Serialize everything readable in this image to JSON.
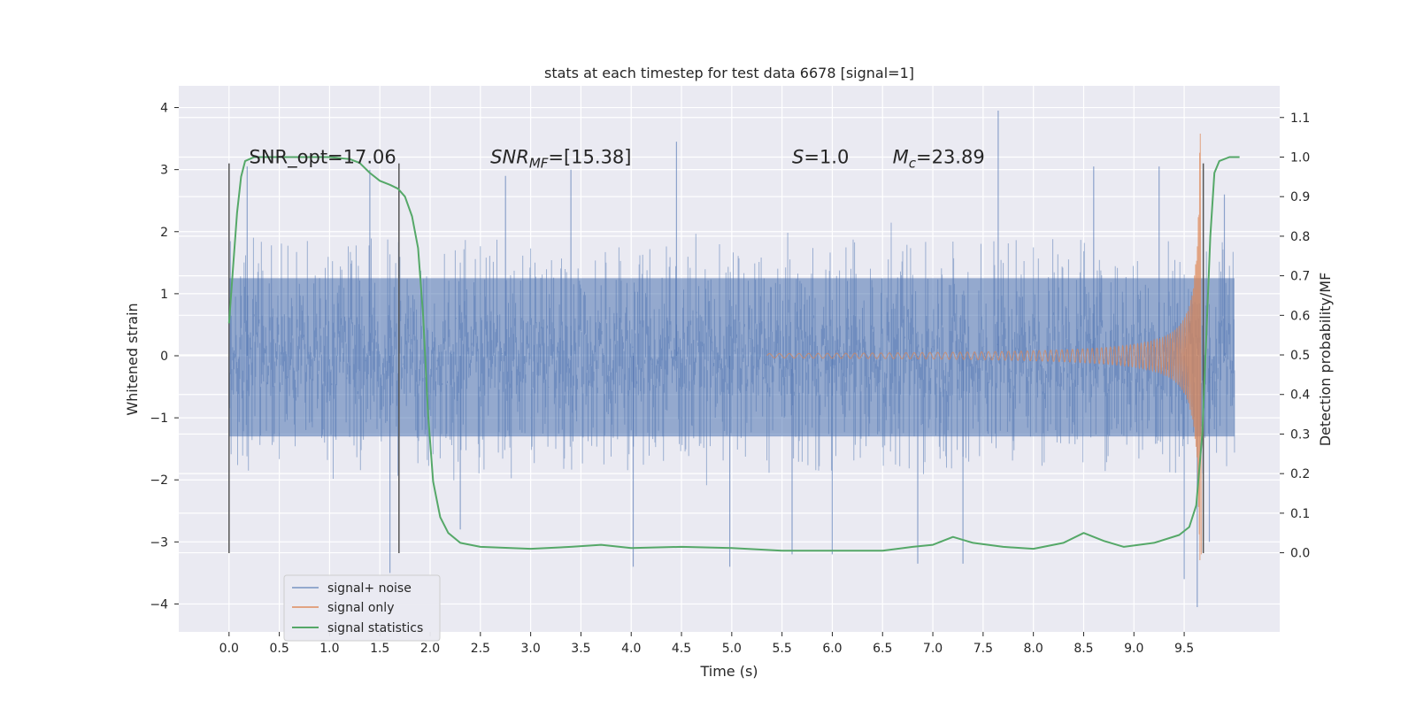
{
  "chart_data": {
    "type": "line",
    "title": "stats at each timestep for test data 6678 [signal=1]",
    "xlabel": "Time (s)",
    "ylabel": "Whitened strain",
    "y2label": "Detection probability/MF",
    "xlim": [
      -0.5,
      10.45
    ],
    "ylim": [
      -4.45,
      4.35
    ],
    "y2lim": [
      -0.2,
      1.18
    ],
    "x_ticks": [
      "0.0",
      "0.5",
      "1.0",
      "1.5",
      "2.0",
      "2.5",
      "3.0",
      "3.5",
      "4.0",
      "4.5",
      "5.0",
      "5.5",
      "6.0",
      "6.5",
      "7.0",
      "7.5",
      "8.0",
      "8.5",
      "9.0",
      "9.5"
    ],
    "y_ticks": [
      "4",
      "3",
      "2",
      "1",
      "0",
      "−1",
      "−2",
      "−3",
      "−4"
    ],
    "y2_ticks": [
      "1.1",
      "1.0",
      "0.9",
      "0.8",
      "0.7",
      "0.6",
      "0.5",
      "0.4",
      "0.3",
      "0.2",
      "0.1",
      "0.0"
    ],
    "grid": true,
    "legend_position": "lower-left",
    "colors": {
      "background": "#eaeaf2",
      "grid": "#ffffff",
      "signal_noise": "#4c72b0",
      "signal_only": "#dd8452",
      "signal_statistics": "#55a868",
      "vline": "#555555"
    },
    "annotations": [
      {
        "label": "SNR_opt=17.06",
        "x": 0.2,
        "y": 3.1
      },
      {
        "label": "SNR",
        "sub": "MF",
        "tail": "=[15.38]",
        "italic_main": true,
        "x": 2.6,
        "y": 3.1
      },
      {
        "label": "S",
        "tail": "=1.0",
        "italic_main": true,
        "x": 5.6,
        "y": 3.1
      },
      {
        "label": "M",
        "sub": "c",
        "tail": "=23.89",
        "italic_main": true,
        "x": 6.6,
        "y": 3.1
      }
    ],
    "vertical_lines": [
      {
        "x": 0.0,
        "y_range": [
          -3.18,
          3.1
        ]
      },
      {
        "x": 1.69,
        "y_range": [
          -3.18,
          3.1
        ]
      },
      {
        "x": 9.69,
        "y_range": [
          -3.18,
          3.1
        ]
      }
    ],
    "series": [
      {
        "name": "signal+ noise",
        "axis": "left",
        "style": "noise-band",
        "x_range": [
          0.0,
          10.0
        ],
        "dense_envelope": [
          -1.3,
          1.25
        ],
        "peak_points": [
          [
            0.18,
            3.05
          ],
          [
            1.4,
            3.0
          ],
          [
            1.6,
            -3.5
          ],
          [
            2.3,
            -2.8
          ],
          [
            2.75,
            2.9
          ],
          [
            3.4,
            3.0
          ],
          [
            4.02,
            -3.4
          ],
          [
            4.45,
            3.45
          ],
          [
            4.98,
            -3.4
          ],
          [
            5.6,
            -3.2
          ],
          [
            6.0,
            -3.2
          ],
          [
            6.85,
            -3.35
          ],
          [
            7.3,
            -3.35
          ],
          [
            7.65,
            3.95
          ],
          [
            8.6,
            3.05
          ],
          [
            9.25,
            3.05
          ],
          [
            9.5,
            -3.6
          ],
          [
            9.63,
            -4.05
          ],
          [
            9.75,
            -3.0
          ],
          [
            9.9,
            2.6
          ]
        ]
      },
      {
        "name": "signal only",
        "axis": "left",
        "style": "chirp",
        "start_x": 5.35,
        "merger_x": 9.66,
        "peak_amplitude": 3.58,
        "end_amplitude": -3.2
      },
      {
        "name": "signal statistics",
        "axis": "right",
        "points": [
          [
            0.0,
            0.58
          ],
          [
            0.04,
            0.72
          ],
          [
            0.08,
            0.86
          ],
          [
            0.12,
            0.95
          ],
          [
            0.16,
            0.99
          ],
          [
            0.25,
            1.0
          ],
          [
            0.5,
            1.0
          ],
          [
            1.0,
            1.0
          ],
          [
            1.2,
            0.995
          ],
          [
            1.3,
            0.985
          ],
          [
            1.4,
            0.96
          ],
          [
            1.5,
            0.94
          ],
          [
            1.6,
            0.93
          ],
          [
            1.68,
            0.92
          ],
          [
            1.75,
            0.9
          ],
          [
            1.82,
            0.85
          ],
          [
            1.88,
            0.77
          ],
          [
            1.93,
            0.6
          ],
          [
            1.98,
            0.35
          ],
          [
            2.03,
            0.18
          ],
          [
            2.1,
            0.09
          ],
          [
            2.18,
            0.05
          ],
          [
            2.3,
            0.025
          ],
          [
            2.5,
            0.015
          ],
          [
            3.0,
            0.01
          ],
          [
            3.4,
            0.015
          ],
          [
            3.7,
            0.02
          ],
          [
            4.0,
            0.012
          ],
          [
            4.5,
            0.015
          ],
          [
            5.0,
            0.012
          ],
          [
            5.5,
            0.005
          ],
          [
            6.0,
            0.005
          ],
          [
            6.5,
            0.005
          ],
          [
            6.8,
            0.015
          ],
          [
            7.0,
            0.02
          ],
          [
            7.2,
            0.04
          ],
          [
            7.4,
            0.025
          ],
          [
            7.7,
            0.015
          ],
          [
            8.0,
            0.01
          ],
          [
            8.3,
            0.025
          ],
          [
            8.5,
            0.05
          ],
          [
            8.7,
            0.03
          ],
          [
            8.9,
            0.015
          ],
          [
            9.2,
            0.025
          ],
          [
            9.45,
            0.045
          ],
          [
            9.55,
            0.065
          ],
          [
            9.62,
            0.12
          ],
          [
            9.68,
            0.3
          ],
          [
            9.72,
            0.55
          ],
          [
            9.76,
            0.8
          ],
          [
            9.8,
            0.96
          ],
          [
            9.85,
            0.99
          ],
          [
            9.95,
            1.0
          ],
          [
            10.05,
            1.0
          ]
        ]
      }
    ]
  }
}
